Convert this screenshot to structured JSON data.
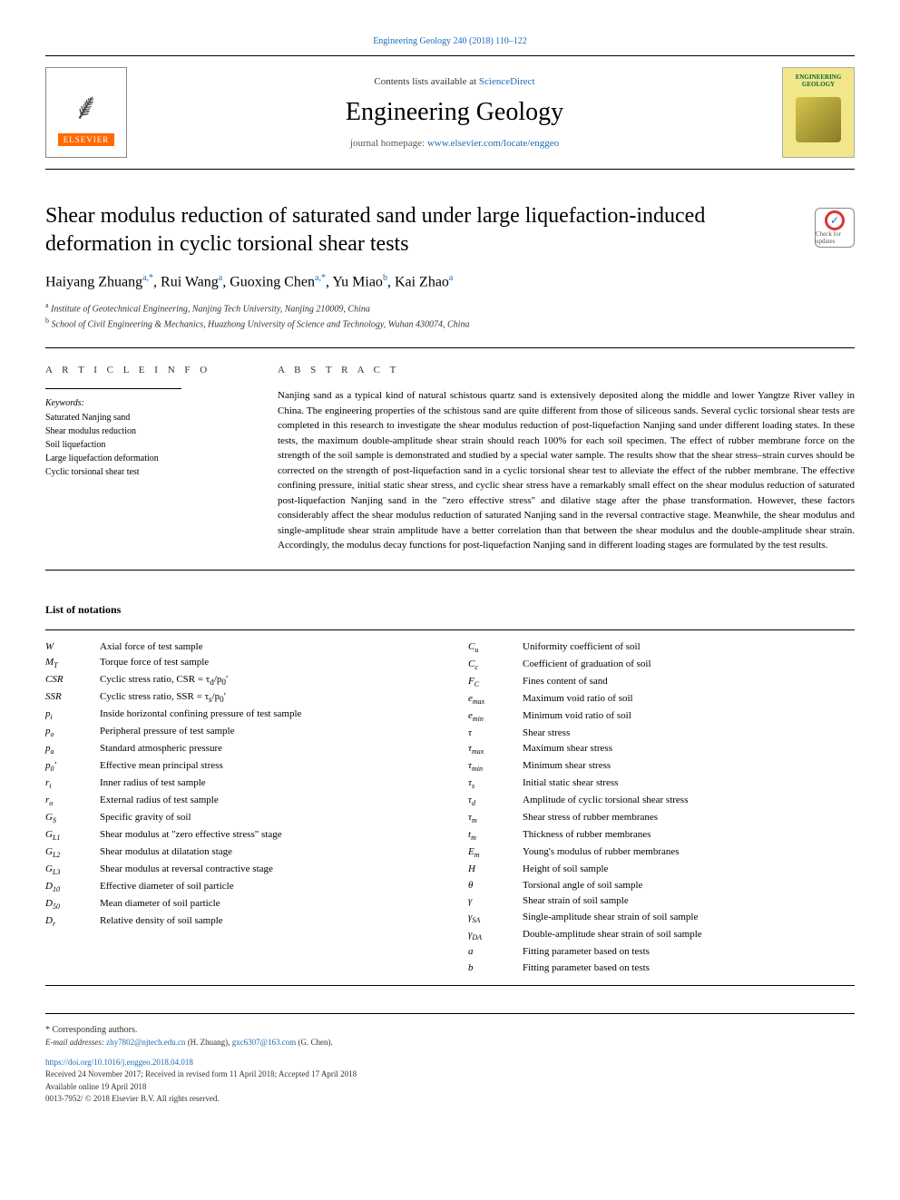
{
  "top_citation": "Engineering Geology 240 (2018) 110–122",
  "header": {
    "contents_prefix": "Contents lists available at ",
    "contents_link": "ScienceDirect",
    "journal_name": "Engineering Geology",
    "homepage_prefix": "journal homepage: ",
    "homepage_link": "www.elsevier.com/locate/enggeo",
    "elsevier_brand": "ELSEVIER",
    "cover_title": "ENGINEERING GEOLOGY"
  },
  "article": {
    "title": "Shear modulus reduction of saturated sand under large liquefaction-induced deformation in cyclic torsional shear tests",
    "check_updates": "Check for updates",
    "authors_html": "Haiyang Zhuang<sup>a,*</sup>, Rui Wang<sup>a</sup>, Guoxing Chen<sup>a,*</sup>, Yu Miao<sup>b</sup>, Kai Zhao<sup>a</sup>",
    "affiliations": [
      {
        "sup": "a",
        "text": "Institute of Geotechnical Engineering, Nanjing Tech University, Nanjing 210009, China"
      },
      {
        "sup": "b",
        "text": "School of Civil Engineering & Mechanics, Huazhong University of Science and Technology, Wuhan 430074, China"
      }
    ]
  },
  "article_info": {
    "heading": "A R T I C L E  I N F O",
    "keywords_label": "Keywords:",
    "keywords": [
      "Saturated Nanjing sand",
      "Shear modulus reduction",
      "Soil liquefaction",
      "Large liquefaction deformation",
      "Cyclic torsional shear test"
    ]
  },
  "abstract": {
    "heading": "A B S T R A C T",
    "text": "Nanjing sand as a typical kind of natural schistous quartz sand is extensively deposited along the middle and lower Yangtze River valley in China. The engineering properties of the schistous sand are quite different from those of siliceous sands. Several cyclic torsional shear tests are completed in this research to investigate the shear modulus reduction of post-liquefaction Nanjing sand under different loading states. In these tests, the maximum double-amplitude shear strain should reach 100% for each soil specimen. The effect of rubber membrane force on the strength of the soil sample is demonstrated and studied by a special water sample. The results show that the shear stress–strain curves should be corrected on the strength of post-liquefaction sand in a cyclic torsional shear test to alleviate the effect of the rubber membrane. The effective confining pressure, initial static shear stress, and cyclic shear stress have a remarkably small effect on the shear modulus reduction of saturated post-liquefaction Nanjing sand in the \"zero effective stress\" and dilative stage after the phase transformation. However, these factors considerably affect the shear modulus reduction of saturated Nanjing sand in the reversal contractive stage. Meanwhile, the shear modulus and single-amplitude shear strain amplitude have a better correlation than that between the shear modulus and the double-amplitude shear strain. Accordingly, the modulus decay functions for post-liquefaction Nanjing sand in different loading stages are formulated by the test results."
  },
  "notations": {
    "heading": "List of notations",
    "left": [
      {
        "sym": "W",
        "desc": "Axial force of test sample"
      },
      {
        "sym": "M<sub>T</sub>",
        "desc": "Torque force of test sample"
      },
      {
        "sym": "CSR",
        "desc": "Cyclic stress ratio, CSR = τ<sub>d</sub>/p<sub>0</sub>′"
      },
      {
        "sym": "SSR",
        "desc": "Cyclic stress ratio, SSR = τ<sub>s</sub>/p<sub>0</sub>′"
      },
      {
        "sym": "p<sub>i</sub>",
        "desc": "Inside horizontal confining pressure of test sample"
      },
      {
        "sym": "p<sub>o</sub>",
        "desc": "Peripheral pressure of test sample"
      },
      {
        "sym": "p<sub>a</sub>",
        "desc": "Standard atmospheric pressure"
      },
      {
        "sym": "p<sub>0</sub>′",
        "desc": "Effective mean principal stress"
      },
      {
        "sym": "r<sub>i</sub>",
        "desc": "Inner radius of test sample"
      },
      {
        "sym": "r<sub>o</sub>",
        "desc": "External radius of test sample"
      },
      {
        "sym": "G<sub>S</sub>",
        "desc": "Specific gravity of soil"
      },
      {
        "sym": "G<sub>L1</sub>",
        "desc": "Shear modulus at \"zero effective stress\" stage"
      },
      {
        "sym": "G<sub>L2</sub>",
        "desc": "Shear modulus at dilatation stage"
      },
      {
        "sym": "G<sub>L3</sub>",
        "desc": "Shear modulus at reversal contractive stage"
      },
      {
        "sym": "D<sub>10</sub>",
        "desc": "Effective diameter of soil particle"
      },
      {
        "sym": "D<sub>50</sub>",
        "desc": "Mean diameter of soil particle"
      },
      {
        "sym": "D<sub>r</sub>",
        "desc": "Relative density of soil sample"
      }
    ],
    "right": [
      {
        "sym": "C<sub>u</sub>",
        "desc": "Uniformity coefficient of soil"
      },
      {
        "sym": "C<sub>c</sub>",
        "desc": "Coefficient of graduation of soil"
      },
      {
        "sym": "F<sub>C</sub>",
        "desc": "Fines content of sand"
      },
      {
        "sym": "e<sub>max</sub>",
        "desc": "Maximum void ratio of soil"
      },
      {
        "sym": "e<sub>min</sub>",
        "desc": "Minimum void ratio of soil"
      },
      {
        "sym": "τ",
        "desc": "Shear stress"
      },
      {
        "sym": "τ<sub>max</sub>",
        "desc": "Maximum shear stress"
      },
      {
        "sym": "τ<sub>min</sub>",
        "desc": "Minimum shear stress"
      },
      {
        "sym": "τ<sub>s</sub>",
        "desc": "Initial static shear stress"
      },
      {
        "sym": "τ<sub>d</sub>",
        "desc": "Amplitude of cyclic torsional shear stress"
      },
      {
        "sym": "τ<sub>m</sub>",
        "desc": "Shear stress of rubber membranes"
      },
      {
        "sym": "t<sub>m</sub>",
        "desc": "Thickness of rubber membranes"
      },
      {
        "sym": "E<sub>m</sub>",
        "desc": "Young's modulus of rubber membranes"
      },
      {
        "sym": "H",
        "desc": "Height of soil sample"
      },
      {
        "sym": "θ",
        "desc": "Torsional angle of soil sample"
      },
      {
        "sym": "γ",
        "desc": "Shear strain of soil sample"
      },
      {
        "sym": "γ<sub>SA</sub>",
        "desc": "Single-amplitude shear strain of soil sample"
      },
      {
        "sym": "γ<sub>DA</sub>",
        "desc": "Double-amplitude shear strain of soil sample"
      },
      {
        "sym": "a",
        "desc": "Fitting parameter based on tests"
      },
      {
        "sym": "b",
        "desc": "Fitting parameter based on tests"
      }
    ]
  },
  "footer": {
    "corresponding": "* Corresponding authors.",
    "email_label": "E-mail addresses: ",
    "emails_html": "<a href='#'>zhy7802@njtech.edu.cn</a> (H. Zhuang), <a href='#'>gxc6307@163.com</a> (G. Chen).",
    "doi": "https://doi.org/10.1016/j.enggeo.2018.04.018",
    "received": "Received 24 November 2017; Received in revised form 11 April 2018; Accepted 17 April 2018",
    "available": "Available online 19 April 2018",
    "copyright": "0013-7952/ © 2018 Elsevier B.V. All rights reserved."
  },
  "colors": {
    "link": "#1a6bb8",
    "elsevier_orange": "#ff6a00",
    "cover_bg": "#f2e68a",
    "cover_title": "#006633"
  }
}
